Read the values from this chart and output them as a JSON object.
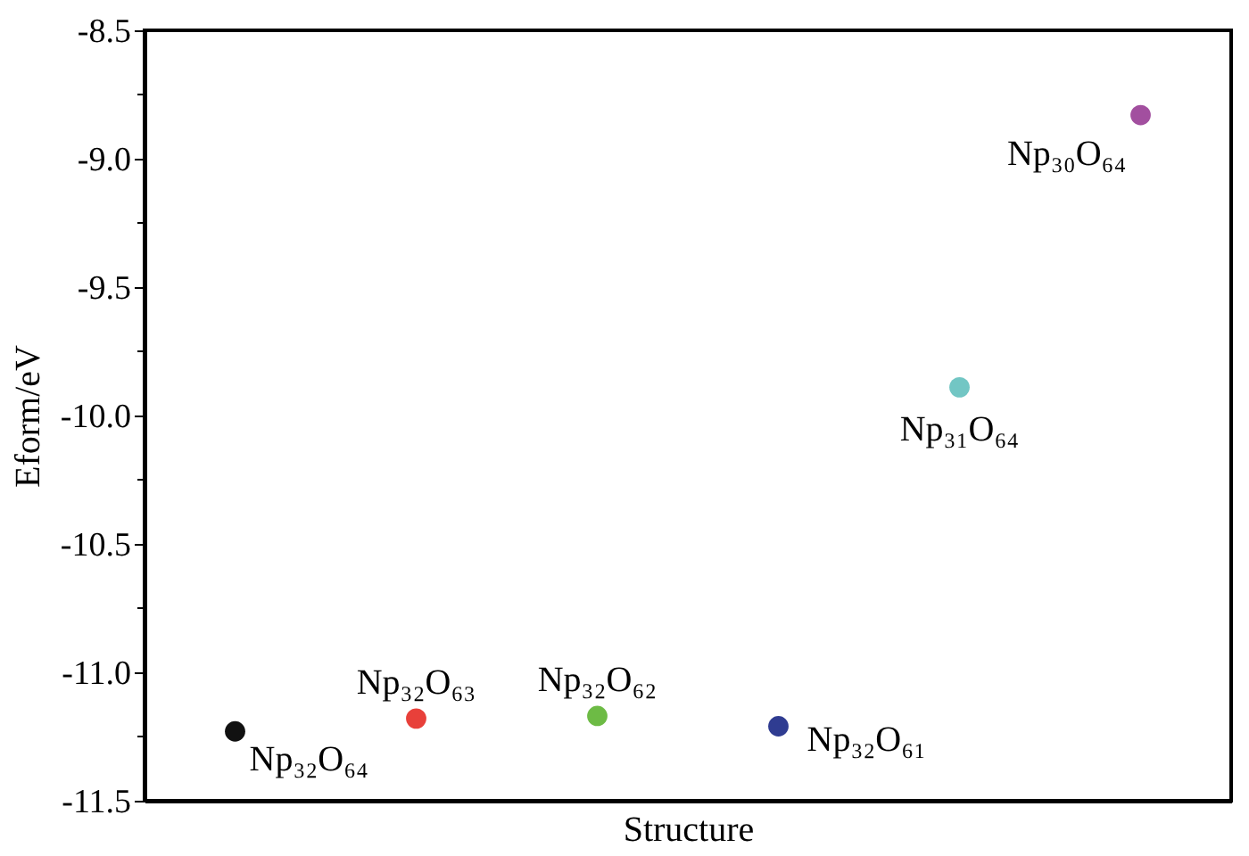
{
  "chart_data": {
    "type": "scatter",
    "xlabel": "Structure",
    "ylabel": "Eform/eV",
    "categories": [
      null,
      null,
      null,
      null,
      null,
      null
    ],
    "values": [
      -11.23,
      -11.18,
      -11.17,
      -11.21,
      -9.89,
      -8.83
    ],
    "colors": [
      "#111111",
      "#e8403a",
      "#6dbb45",
      "#2f3c91",
      "#72c6c4",
      "#a24f9f"
    ],
    "annotations": [
      "Np₃₂O₆₄",
      "Np₃₂O₆₃",
      "Np₃₂O₆₂",
      "Np₃₂O₆₁",
      "Np₃₁O₆₄",
      "Np₃₀O₆₄"
    ],
    "ylim": [
      -11.5,
      -8.5
    ],
    "yticks": [
      {
        "value": -11.5,
        "label": "-11.5"
      },
      {
        "value": -11.25,
        "label": null
      },
      {
        "value": -11,
        "label": "-11.0"
      },
      {
        "value": -10.75,
        "label": null
      },
      {
        "value": -10.5,
        "label": "-10.5"
      },
      {
        "value": -10.25,
        "label": null
      },
      {
        "value": -10,
        "label": "-10.0"
      },
      {
        "value": -9.75,
        "label": null
      },
      {
        "value": -9.5,
        "label": "-9.5"
      },
      {
        "value": -9.25,
        "label": null
      },
      {
        "value": -9,
        "label": "-9.0"
      },
      {
        "value": -8.75,
        "label": null
      },
      {
        "value": -8.5,
        "label": "-8.5"
      }
    ],
    "grid": false,
    "legend": false,
    "marker": "circle"
  }
}
